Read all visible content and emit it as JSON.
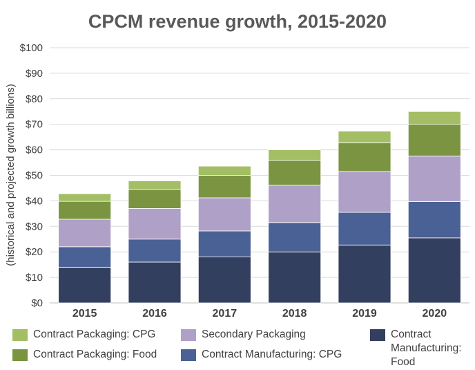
{
  "chart_data": {
    "type": "bar",
    "stacked": true,
    "title": "CPCM revenue growth, 2015-2020",
    "xlabel": "",
    "ylabel": "(historical and projected growth billions)",
    "ylim": [
      0,
      100
    ],
    "y_ticks": [
      "$0",
      "$10",
      "$20",
      "$30",
      "$40",
      "$50",
      "$60",
      "$70",
      "$80",
      "$90",
      "$100"
    ],
    "y_tick_values": [
      0,
      10,
      20,
      30,
      40,
      50,
      60,
      70,
      80,
      90,
      100
    ],
    "grid": true,
    "legend_position": "bottom",
    "categories": [
      "2015",
      "2016",
      "2017",
      "2018",
      "2019",
      "2020"
    ],
    "series": [
      {
        "name": "Contract Manufacturing: Food",
        "color": "#333f5e",
        "values": [
          14,
          16,
          18,
          20,
          22.7,
          25.5
        ]
      },
      {
        "name": "Contract Manufacturing: CPG",
        "color": "#4a6195",
        "values": [
          8,
          9,
          10.2,
          11.5,
          12.8,
          14.2
        ]
      },
      {
        "name": "Secondary Packaging",
        "color": "#afa0c8",
        "values": [
          10.8,
          12,
          13,
          14.6,
          16,
          17.8
        ]
      },
      {
        "name": "Contract Packaging: Food",
        "color": "#7a9441",
        "values": [
          7,
          7.5,
          8.8,
          9.7,
          11.2,
          12.5
        ]
      },
      {
        "name": "Contract Packaging: CPG",
        "color": "#a3be64",
        "values": [
          3,
          3.3,
          3.6,
          4.2,
          4.6,
          5
        ]
      }
    ]
  },
  "legend": [
    {
      "label": "Contract Packaging: CPG",
      "color": "#a3be64"
    },
    {
      "label": "Secondary Packaging",
      "color": "#afa0c8"
    },
    {
      "label": "Contract Manufacturing: Food",
      "color": "#333f5e"
    },
    {
      "label": "Contract Packaging: Food",
      "color": "#7a9441"
    },
    {
      "label": "Contract Manufacturing: CPG",
      "color": "#4a6195"
    }
  ]
}
